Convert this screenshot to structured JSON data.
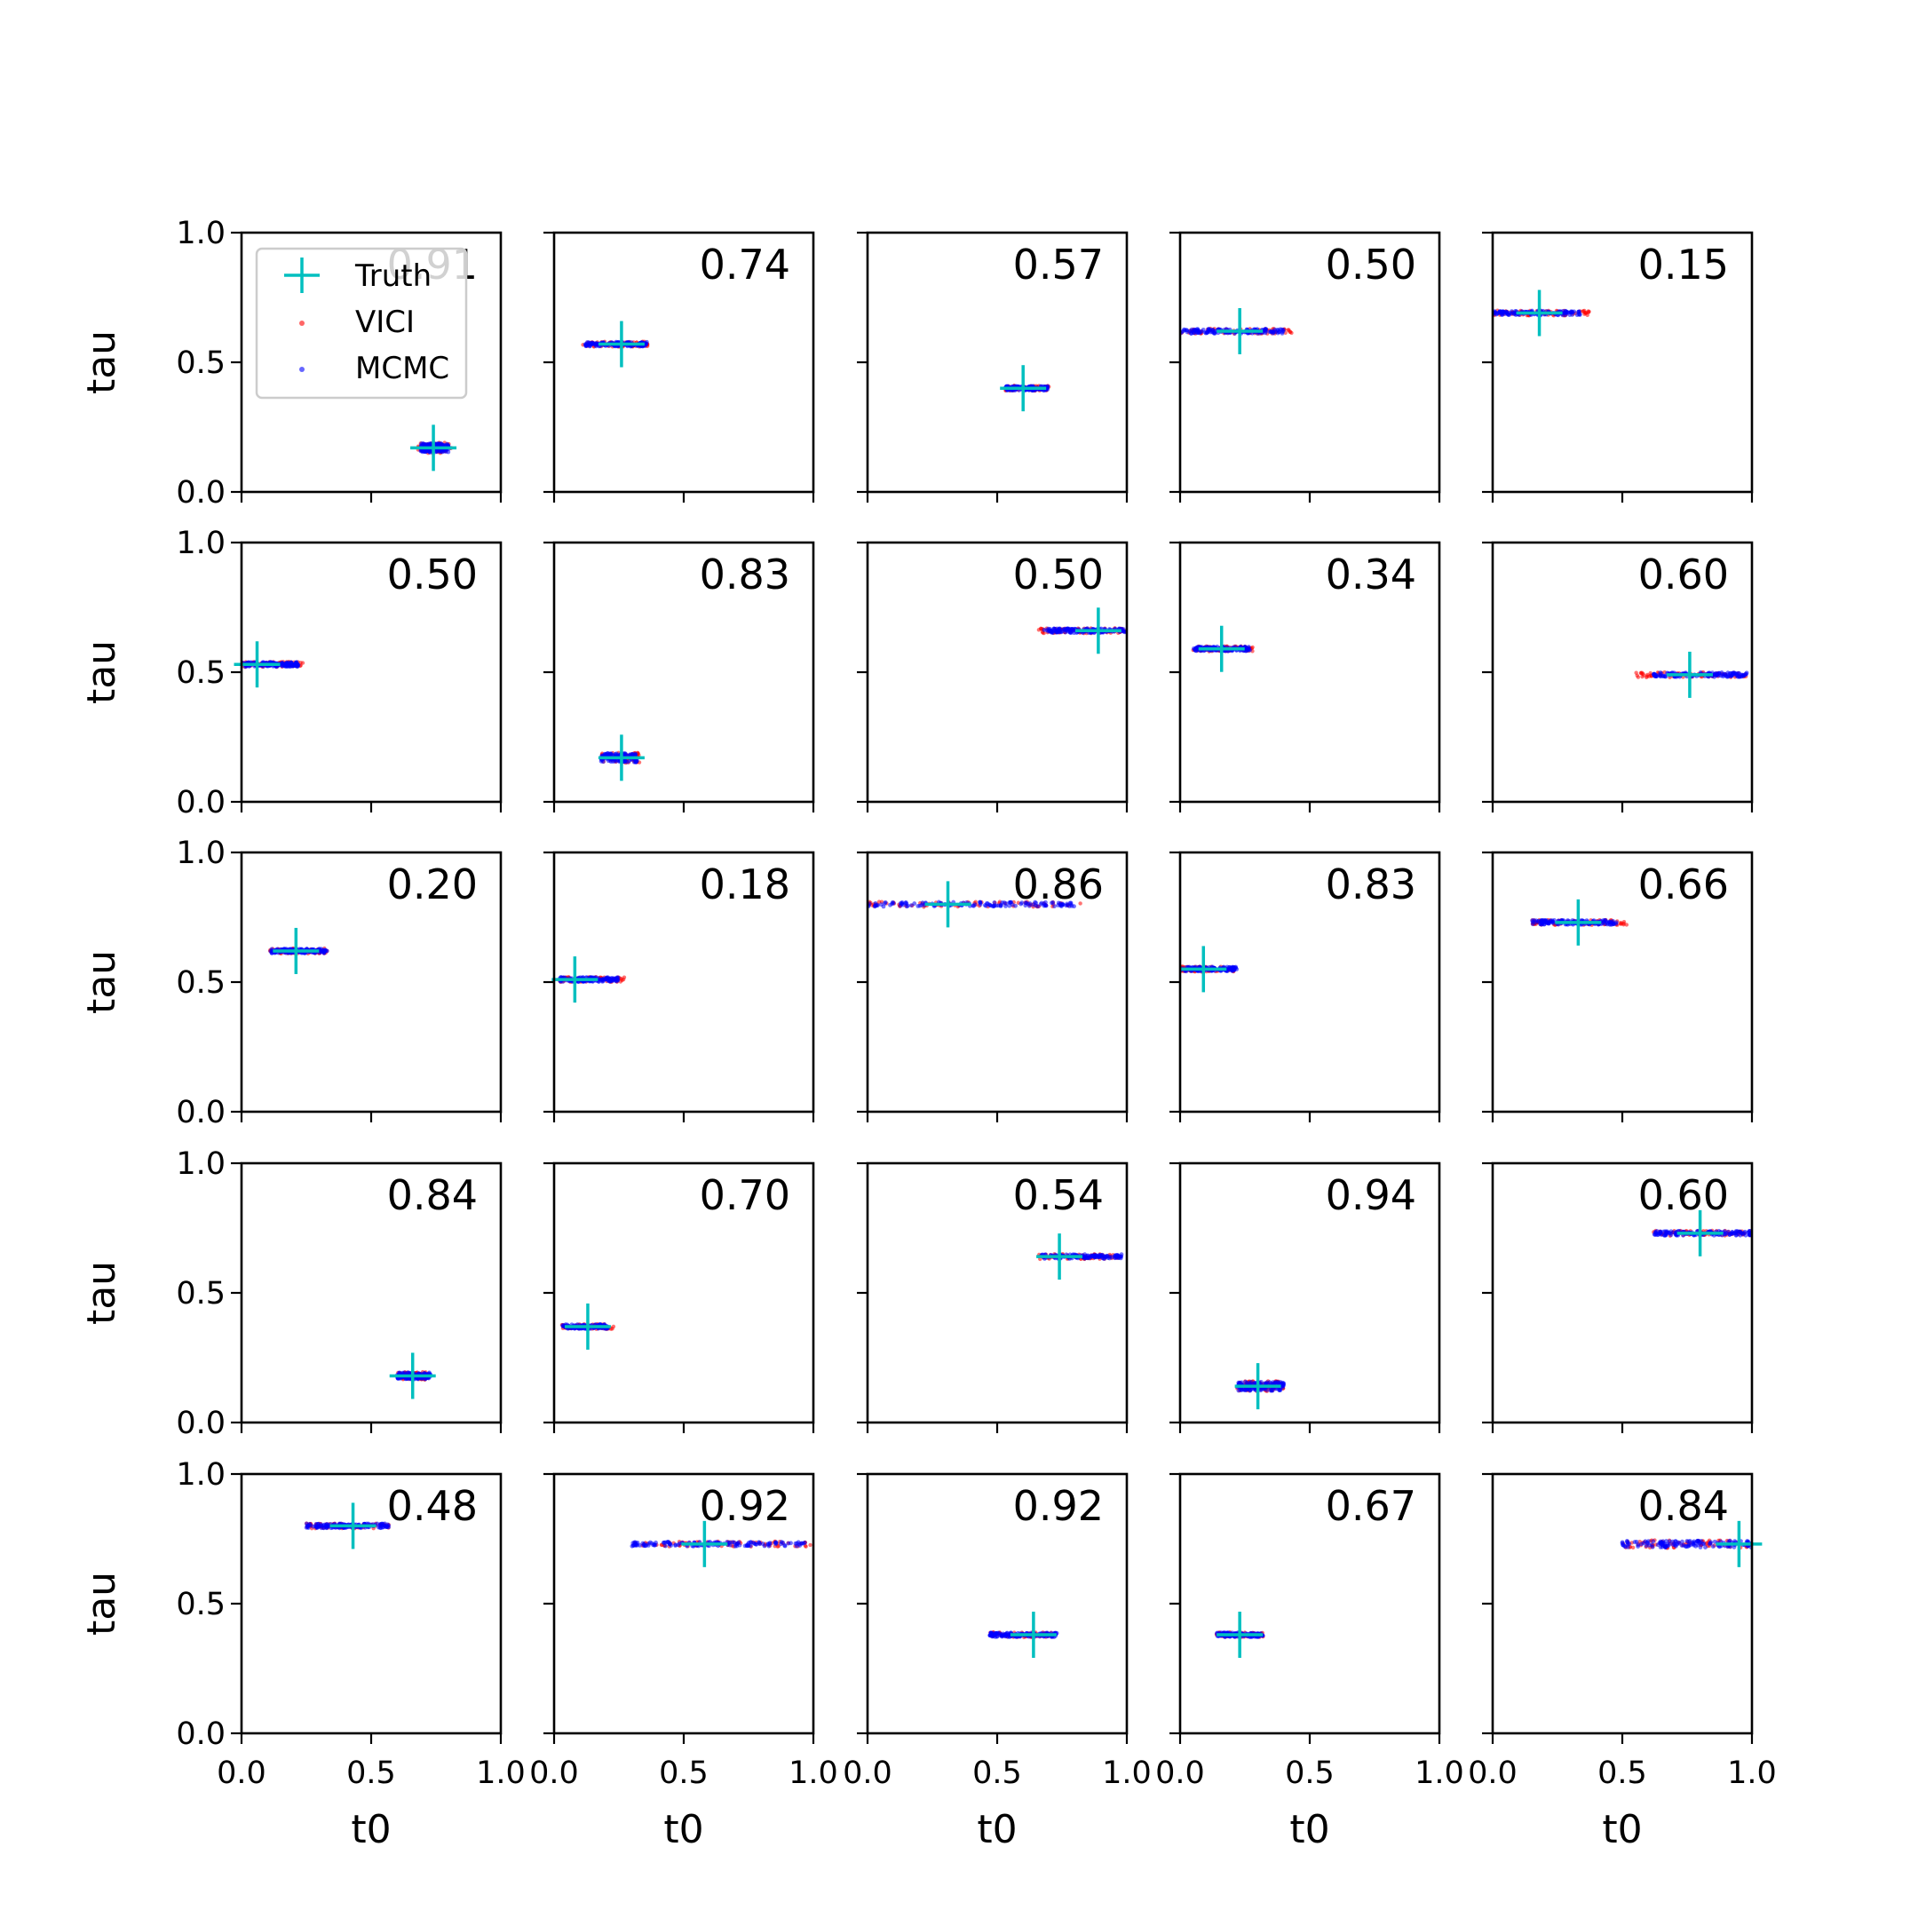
{
  "chart_data": {
    "type": "scatter",
    "layout": "5x5 grid of subplots",
    "xlabel": "t0",
    "ylabel": "tau",
    "xlim": [
      0.0,
      1.0
    ],
    "ylim": [
      0.0,
      1.0
    ],
    "xticks": [
      "0.0",
      "0.5",
      "1.0"
    ],
    "yticks": [
      "0.0",
      "0.5",
      "1.0"
    ],
    "grid": false,
    "legend": {
      "placement": "upper-left of first panel",
      "entries": [
        {
          "name": "Truth",
          "marker": "plus",
          "color": "#00bfbf"
        },
        {
          "name": "VICI",
          "marker": "dot",
          "color": "#ff0000"
        },
        {
          "name": "MCMC",
          "marker": "dot",
          "color": "#0000ff"
        }
      ]
    },
    "panels": [
      {
        "overlap": "0.91",
        "truth": [
          0.74,
          0.17
        ],
        "mcmc_t0_range": [
          0.69,
          0.8
        ],
        "vici_t0_range": [
          0.68,
          0.81
        ],
        "tau_spread": 0.04
      },
      {
        "overlap": "0.74",
        "truth": [
          0.26,
          0.57
        ],
        "mcmc_t0_range": [
          0.12,
          0.36
        ],
        "vici_t0_range": [
          0.11,
          0.37
        ],
        "tau_spread": 0.02
      },
      {
        "overlap": "0.57",
        "truth": [
          0.6,
          0.4
        ],
        "mcmc_t0_range": [
          0.53,
          0.7
        ],
        "vici_t0_range": [
          0.53,
          0.7
        ],
        "tau_spread": 0.02
      },
      {
        "overlap": "0.50",
        "truth": [
          0.23,
          0.62
        ],
        "mcmc_t0_range": [
          0.0,
          0.4
        ],
        "vici_t0_range": [
          0.0,
          0.43
        ],
        "tau_spread": 0.02
      },
      {
        "overlap": "0.15",
        "truth": [
          0.18,
          0.69
        ],
        "mcmc_t0_range": [
          0.0,
          0.34
        ],
        "vici_t0_range": [
          0.0,
          0.38
        ],
        "tau_spread": 0.02
      },
      {
        "overlap": "0.50",
        "truth": [
          0.06,
          0.53
        ],
        "mcmc_t0_range": [
          0.0,
          0.22
        ],
        "vici_t0_range": [
          0.0,
          0.24
        ],
        "tau_spread": 0.02
      },
      {
        "overlap": "0.83",
        "truth": [
          0.26,
          0.17
        ],
        "mcmc_t0_range": [
          0.18,
          0.32
        ],
        "vici_t0_range": [
          0.18,
          0.33
        ],
        "tau_spread": 0.04
      },
      {
        "overlap": "0.50",
        "truth": [
          0.89,
          0.66
        ],
        "mcmc_t0_range": [
          0.68,
          1.0
        ],
        "vici_t0_range": [
          0.66,
          1.0
        ],
        "tau_spread": 0.02
      },
      {
        "overlap": "0.34",
        "truth": [
          0.16,
          0.59
        ],
        "mcmc_t0_range": [
          0.05,
          0.27
        ],
        "vici_t0_range": [
          0.05,
          0.28
        ],
        "tau_spread": 0.02
      },
      {
        "overlap": "0.60",
        "truth": [
          0.76,
          0.49
        ],
        "mcmc_t0_range": [
          0.62,
          0.98
        ],
        "vici_t0_range": [
          0.55,
          0.98
        ],
        "tau_spread": 0.02
      },
      {
        "overlap": "0.20",
        "truth": [
          0.21,
          0.62
        ],
        "mcmc_t0_range": [
          0.11,
          0.33
        ],
        "vici_t0_range": [
          0.11,
          0.33
        ],
        "tau_spread": 0.02
      },
      {
        "overlap": "0.18",
        "truth": [
          0.08,
          0.51
        ],
        "mcmc_t0_range": [
          0.02,
          0.25
        ],
        "vici_t0_range": [
          0.02,
          0.28
        ],
        "tau_spread": 0.02
      },
      {
        "overlap": "0.86",
        "truth": [
          0.31,
          0.8
        ],
        "mcmc_t0_range": [
          0.0,
          0.8
        ],
        "vici_t0_range": [
          0.0,
          0.83
        ],
        "tau_spread": 0.02
      },
      {
        "overlap": "0.83",
        "truth": [
          0.09,
          0.55
        ],
        "mcmc_t0_range": [
          0.0,
          0.22
        ],
        "vici_t0_range": [
          0.0,
          0.21
        ],
        "tau_spread": 0.02
      },
      {
        "overlap": "0.66",
        "truth": [
          0.33,
          0.73
        ],
        "mcmc_t0_range": [
          0.15,
          0.48
        ],
        "vici_t0_range": [
          0.15,
          0.52
        ],
        "tau_spread": 0.02
      },
      {
        "overlap": "0.84",
        "truth": [
          0.66,
          0.18
        ],
        "mcmc_t0_range": [
          0.6,
          0.73
        ],
        "vici_t0_range": [
          0.6,
          0.72
        ],
        "tau_spread": 0.03
      },
      {
        "overlap": "0.70",
        "truth": [
          0.13,
          0.37
        ],
        "mcmc_t0_range": [
          0.03,
          0.21
        ],
        "vici_t0_range": [
          0.03,
          0.23
        ],
        "tau_spread": 0.02
      },
      {
        "overlap": "0.54",
        "truth": [
          0.74,
          0.64
        ],
        "mcmc_t0_range": [
          0.67,
          0.98
        ],
        "vici_t0_range": [
          0.66,
          0.97
        ],
        "tau_spread": 0.02
      },
      {
        "overlap": "0.94",
        "truth": [
          0.3,
          0.14
        ],
        "mcmc_t0_range": [
          0.22,
          0.4
        ],
        "vici_t0_range": [
          0.22,
          0.4
        ],
        "tau_spread": 0.04
      },
      {
        "overlap": "0.60",
        "truth": [
          0.8,
          0.73
        ],
        "mcmc_t0_range": [
          0.62,
          1.0
        ],
        "vici_t0_range": [
          0.62,
          1.0
        ],
        "tau_spread": 0.02
      },
      {
        "overlap": "0.48",
        "truth": [
          0.43,
          0.8
        ],
        "mcmc_t0_range": [
          0.25,
          0.57
        ],
        "vici_t0_range": [
          0.25,
          0.57
        ],
        "tau_spread": 0.02
      },
      {
        "overlap": "0.92",
        "truth": [
          0.58,
          0.73
        ],
        "mcmc_t0_range": [
          0.3,
          0.97
        ],
        "vici_t0_range": [
          0.3,
          0.99
        ],
        "tau_spread": 0.02
      },
      {
        "overlap": "0.92",
        "truth": [
          0.64,
          0.38
        ],
        "mcmc_t0_range": [
          0.47,
          0.73
        ],
        "vici_t0_range": [
          0.47,
          0.73
        ],
        "tau_spread": 0.02
      },
      {
        "overlap": "0.67",
        "truth": [
          0.23,
          0.38
        ],
        "mcmc_t0_range": [
          0.14,
          0.32
        ],
        "vici_t0_range": [
          0.14,
          0.32
        ],
        "tau_spread": 0.02
      },
      {
        "overlap": "0.84",
        "truth": [
          0.95,
          0.73
        ],
        "mcmc_t0_range": [
          0.5,
          1.0
        ],
        "vici_t0_range": [
          0.5,
          1.0
        ],
        "tau_spread": 0.03
      }
    ]
  }
}
